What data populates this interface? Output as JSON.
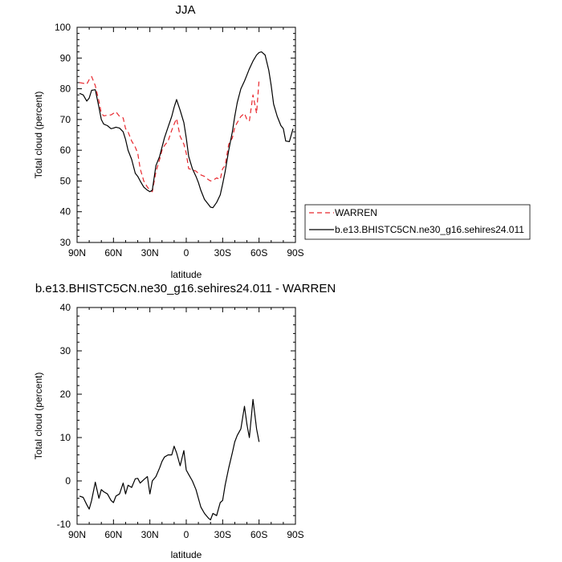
{
  "chart_data": [
    {
      "type": "line",
      "title": "JJA",
      "xlabel": "latitude",
      "ylabel": "Total cloud (percent)",
      "xlim": [
        90,
        -90
      ],
      "ylim": [
        30,
        100
      ],
      "xticks": [
        90,
        60,
        30,
        0,
        -30,
        -60,
        -90
      ],
      "xticklabels": [
        "90N",
        "60N",
        "30N",
        "0",
        "30S",
        "60S",
        "90S"
      ],
      "yticks": [
        30,
        40,
        50,
        60,
        70,
        80,
        90,
        100
      ],
      "yticklabels": [
        "30",
        "40",
        "50",
        "60",
        "70",
        "80",
        "90",
        "100"
      ],
      "grid": false,
      "legend": "right",
      "series": [
        {
          "name": "WARREN",
          "color": "#e8272d",
          "style": "dashed",
          "x": [
            88,
            85,
            82,
            80,
            78,
            75,
            72,
            70,
            68,
            65,
            62,
            60,
            58,
            55,
            52,
            50,
            48,
            45,
            42,
            40,
            38,
            35,
            32,
            30,
            28,
            25,
            22,
            20,
            18,
            15,
            12,
            10,
            8,
            5,
            2,
            0,
            -2,
            -5,
            -8,
            -10,
            -12,
            -15,
            -18,
            -20,
            -22,
            -25,
            -28,
            -30,
            -32,
            -35,
            -38,
            -40,
            -42,
            -45,
            -48,
            -50,
            -52,
            -55,
            -58,
            -60
          ],
          "y": [
            82,
            81.8,
            81.5,
            83,
            84,
            81,
            76,
            72,
            71.2,
            71.4,
            71.5,
            72,
            72.5,
            71,
            70.5,
            67,
            66,
            63,
            61,
            59,
            54,
            50,
            48,
            47,
            46.5,
            53,
            57,
            60,
            61.5,
            63,
            66.5,
            68.5,
            70.3,
            64.5,
            62,
            59,
            54,
            53.7,
            53.2,
            52.5,
            52,
            51.5,
            50.5,
            50,
            50.2,
            51,
            50.5,
            54,
            55,
            62,
            64,
            67.5,
            69,
            71,
            72,
            70,
            69.5,
            78,
            72,
            83
          ]
        },
        {
          "name": "b.e13.BHISTC5CN.ne30_g16.sehires24.011",
          "color": "#000000",
          "style": "solid",
          "x": [
            88,
            85,
            82,
            80,
            78,
            75,
            72,
            70,
            68,
            65,
            62,
            60,
            58,
            55,
            52,
            50,
            48,
            45,
            42,
            40,
            38,
            35,
            32,
            30,
            28,
            25,
            22,
            20,
            18,
            15,
            12,
            10,
            8,
            5,
            2,
            0,
            -2,
            -5,
            -8,
            -10,
            -12,
            -15,
            -18,
            -20,
            -22,
            -25,
            -28,
            -30,
            -32,
            -35,
            -38,
            -40,
            -42,
            -45,
            -48,
            -50,
            -52,
            -55,
            -58,
            -60,
            -62,
            -65,
            -68,
            -70,
            -72,
            -75,
            -78,
            -80,
            -82,
            -85,
            -88
          ],
          "y": [
            78.5,
            78,
            76,
            77,
            79.5,
            79.7,
            74,
            70,
            68.5,
            68,
            67,
            67.2,
            67.5,
            67.2,
            66,
            63.5,
            60,
            57,
            52.5,
            51.5,
            50,
            48,
            47,
            46.5,
            47,
            55,
            58,
            61,
            64,
            67.5,
            71,
            74,
            76.5,
            73,
            69,
            64,
            58,
            54,
            51.5,
            49.5,
            47,
            44,
            42.5,
            41.5,
            41.3,
            43,
            45.5,
            49,
            53,
            60,
            66,
            71,
            75.5,
            80,
            82.5,
            84.5,
            86.5,
            89,
            91,
            91.8,
            92,
            91,
            86,
            81,
            75,
            71,
            68,
            67,
            63,
            62.8,
            67
          ]
        }
      ]
    },
    {
      "type": "line",
      "title": "b.e13.BHISTC5CN.ne30_g16.sehires24.011 - WARREN",
      "xlabel": "latitude",
      "ylabel": "Total cloud (percent)",
      "xlim": [
        90,
        -90
      ],
      "ylim": [
        -10,
        40
      ],
      "xticks": [
        90,
        60,
        30,
        0,
        -30,
        -60,
        -90
      ],
      "xticklabels": [
        "90N",
        "60N",
        "30N",
        "0",
        "30S",
        "60S",
        "90S"
      ],
      "yticks": [
        -10,
        0,
        10,
        20,
        30,
        40
      ],
      "yticklabels": [
        "-10",
        "0",
        "10",
        "20",
        "30",
        "40"
      ],
      "grid": false,
      "series": [
        {
          "color": "#000000",
          "style": "solid",
          "x": [
            88,
            85,
            82,
            80,
            78,
            75,
            72,
            70,
            68,
            65,
            62,
            60,
            58,
            55,
            52,
            50,
            48,
            45,
            42,
            40,
            38,
            35,
            32,
            30,
            28,
            25,
            22,
            20,
            18,
            15,
            12,
            10,
            8,
            5,
            2,
            0,
            -2,
            -5,
            -8,
            -10,
            -12,
            -15,
            -18,
            -20,
            -22,
            -25,
            -28,
            -30,
            -32,
            -35,
            -38,
            -40,
            -42,
            -45,
            -48,
            -50,
            -52,
            -55,
            -58,
            -60
          ],
          "y": [
            -3.5,
            -3.8,
            -5.5,
            -6.5,
            -4.5,
            -0.3,
            -4,
            -2,
            -2.5,
            -3,
            -4.5,
            -5,
            -3.5,
            -3,
            -0.5,
            -3,
            -1,
            -1.5,
            0.5,
            0.6,
            -0.5,
            0.3,
            1,
            -3,
            0,
            1,
            3,
            4.5,
            5.5,
            6,
            6,
            8,
            6.5,
            3.5,
            7,
            2.5,
            1.5,
            0,
            -2,
            -4,
            -6,
            -7.5,
            -8.5,
            -9,
            -7.5,
            -8,
            -5,
            -4.5,
            -1,
            3,
            6.5,
            9,
            10.5,
            12,
            17.2,
            13,
            10,
            18.8,
            12,
            9
          ]
        }
      ]
    }
  ]
}
